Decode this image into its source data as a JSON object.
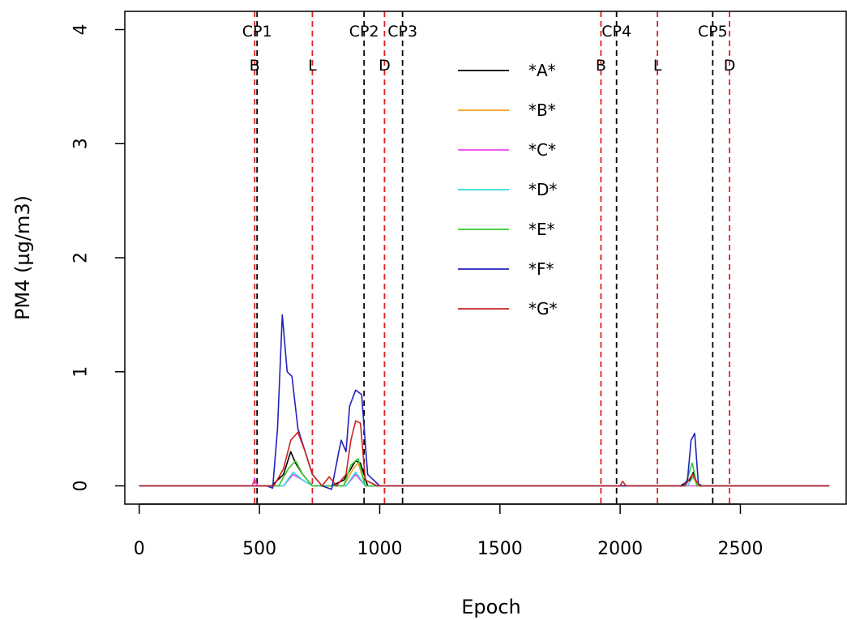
{
  "chart_data": {
    "type": "line",
    "xlabel": "Epoch",
    "ylabel": "PM4 (µg/m3)",
    "xlim": [
      -60,
      2940
    ],
    "ylim": [
      -0.16,
      4.16
    ],
    "xticks": [
      0,
      500,
      1000,
      1500,
      2000,
      2500
    ],
    "yticks": [
      0,
      1,
      2,
      3,
      4
    ],
    "grid": false,
    "legend_position": "top-center",
    "vlines": [
      {
        "x": 480,
        "label": "B",
        "color": "#dd2222",
        "style": "dashed"
      },
      {
        "x": 490,
        "label": "CP1",
        "color": "#000000",
        "style": "dashed"
      },
      {
        "x": 720,
        "label": "L",
        "color": "#dd2222",
        "style": "dashed"
      },
      {
        "x": 935,
        "label": "CP2",
        "color": "#000000",
        "style": "dashed"
      },
      {
        "x": 1020,
        "label": "D",
        "color": "#dd2222",
        "style": "dashed"
      },
      {
        "x": 1095,
        "label": "CP3",
        "color": "#000000",
        "style": "dashed"
      },
      {
        "x": 1920,
        "label": "B",
        "color": "#dd2222",
        "style": "dashed"
      },
      {
        "x": 1985,
        "label": "CP4",
        "color": "#000000",
        "style": "dashed"
      },
      {
        "x": 2155,
        "label": "L",
        "color": "#dd2222",
        "style": "dashed"
      },
      {
        "x": 2385,
        "label": "CP5",
        "color": "#000000",
        "style": "dashed"
      },
      {
        "x": 2455,
        "label": "D",
        "color": "#dd2222",
        "style": "dashed"
      }
    ],
    "series": [
      {
        "name": "*A*",
        "color": "#000000",
        "x": [
          0,
          550,
          600,
          630,
          650,
          680,
          720,
          800,
          850,
          880,
          900,
          920,
          950,
          1000,
          2250,
          2290,
          2305,
          2320,
          2870
        ],
        "y": [
          0,
          0,
          0.1,
          0.3,
          0.2,
          0.1,
          0,
          0,
          0.05,
          0.15,
          0.22,
          0.2,
          0,
          0,
          0,
          0.05,
          0.12,
          0,
          0
        ]
      },
      {
        "name": "*B*",
        "color": "#f0a020",
        "x": [
          0,
          580,
          620,
          650,
          680,
          720,
          850,
          890,
          910,
          940,
          1000,
          2270,
          2300,
          2320,
          2870
        ],
        "y": [
          0,
          0,
          0.15,
          0.22,
          0.1,
          0,
          0,
          0.15,
          0.2,
          0,
          0,
          0,
          0.1,
          0,
          0
        ]
      },
      {
        "name": "*C*",
        "color": "#ee44ee",
        "x": [
          0,
          470,
          480,
          490,
          600,
          640,
          680,
          720,
          860,
          900,
          940,
          2870
        ],
        "y": [
          0,
          0,
          0.07,
          0,
          0,
          0.1,
          0.05,
          0,
          0,
          0.1,
          0,
          0
        ]
      },
      {
        "name": "*D*",
        "color": "#33dddd",
        "x": [
          0,
          600,
          640,
          680,
          720,
          860,
          900,
          940,
          2280,
          2305,
          2330,
          2870
        ],
        "y": [
          0,
          0,
          0.12,
          0.05,
          0,
          0,
          0.12,
          0,
          0,
          0.08,
          0,
          0
        ]
      },
      {
        "name": "*E*",
        "color": "#33cc33",
        "x": [
          0,
          580,
          620,
          650,
          680,
          720,
          850,
          880,
          910,
          940,
          1000,
          2270,
          2300,
          2320,
          2870
        ],
        "y": [
          0,
          0,
          0.15,
          0.22,
          0.1,
          0,
          0,
          0.18,
          0.24,
          0,
          0,
          0,
          0.2,
          0,
          0
        ]
      },
      {
        "name": "*F*",
        "color": "#2222bb",
        "x": [
          0,
          530,
          555,
          575,
          595,
          615,
          635,
          660,
          690,
          720,
          760,
          800,
          830,
          840,
          860,
          875,
          900,
          925,
          950,
          1000,
          2260,
          2280,
          2295,
          2310,
          2325,
          2340,
          2870
        ],
        "y": [
          0,
          0,
          -0.02,
          0.5,
          1.5,
          1.0,
          0.96,
          0.5,
          0.3,
          0.1,
          0,
          -0.03,
          0.3,
          0.4,
          0.3,
          0.7,
          0.84,
          0.8,
          0.1,
          0,
          0,
          0.05,
          0.4,
          0.46,
          0.02,
          0,
          0
        ]
      },
      {
        "name": "*G*",
        "color": "#cc2222",
        "x": [
          0,
          560,
          600,
          630,
          660,
          690,
          720,
          760,
          790,
          820,
          860,
          880,
          900,
          920,
          940,
          990,
          2000,
          2010,
          2025,
          2270,
          2300,
          2330,
          2870
        ],
        "y": [
          0,
          0,
          0.15,
          0.4,
          0.47,
          0.3,
          0.1,
          0,
          0.08,
          0,
          0.1,
          0.4,
          0.57,
          0.55,
          0.05,
          0,
          0,
          0.04,
          0,
          0,
          0.1,
          0,
          0
        ]
      }
    ]
  }
}
